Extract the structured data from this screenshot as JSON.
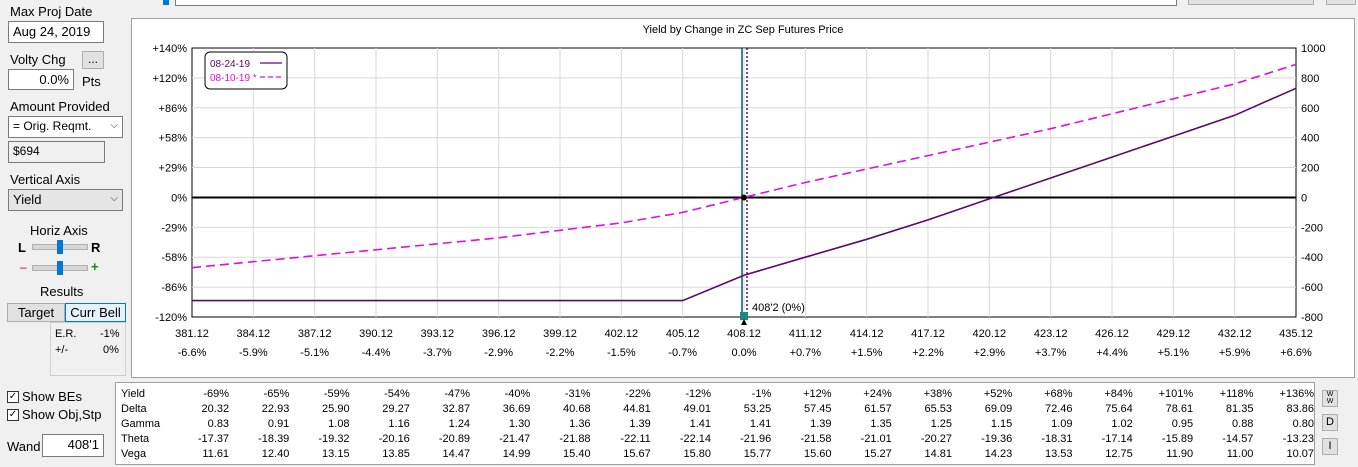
{
  "controls": {
    "max_proj_date_label": "Max Proj Date",
    "max_proj_date_value": "Aug 24, 2019",
    "volty_chg_label": "Volty Chg",
    "volty_chg_value": "0.0%",
    "volty_units": "Pts",
    "ellipsis": "...",
    "amount_provided_label": "Amount Provided",
    "amount_provided_value": "= Orig. Reqmt.",
    "amount_value": "$694",
    "vertical_axis_label": "Vertical Axis",
    "vertical_axis_value": "Yield",
    "horiz_axis_label": "Horiz Axis",
    "horiz_l": "L",
    "horiz_r": "R",
    "zoom_minus": "–",
    "zoom_plus": "+",
    "results_label": "Results",
    "target_button": "Target",
    "curr_bell_button": "Curr Bell",
    "er_label": "E.R.",
    "er_value": "-1%",
    "pm_label": "+/-",
    "pm_value": "0%",
    "show_bes_label": "Show BEs",
    "show_obj_label": "Show Obj,Stp",
    "wand_label": "Wand",
    "wand_value": "408'1"
  },
  "chart_data": {
    "type": "line",
    "title": "Yield by Change in ZC Sep Futures Price",
    "legend_position": "top-left",
    "x_ticks": [
      "381.12",
      "384.12",
      "387.12",
      "390.12",
      "393.12",
      "396.12",
      "399.12",
      "402.12",
      "405.12",
      "408.12",
      "411.12",
      "414.12",
      "417.12",
      "420.12",
      "423.12",
      "426.12",
      "429.12",
      "432.12",
      "435.12"
    ],
    "x_pct_ticks": [
      "-6.6%",
      "-5.9%",
      "-5.1%",
      "-4.4%",
      "-3.7%",
      "-2.9%",
      "-2.2%",
      "-1.5%",
      "-0.7%",
      "0.0%",
      "+0.7%",
      "+1.5%",
      "+2.2%",
      "+2.9%",
      "+3.7%",
      "+4.4%",
      "+5.1%",
      "+5.9%",
      "+6.6%"
    ],
    "y_left_ticks": [
      "+140%",
      "+120%",
      "+86%",
      "+58%",
      "+29%",
      "0%",
      "-29%",
      "-58%",
      "-86%",
      "-120%"
    ],
    "y_right_ticks": [
      "1000",
      "800",
      "600",
      "400",
      "200",
      "0",
      "-200",
      "-400",
      "-600",
      "-800"
    ],
    "y_right_range": [
      -800,
      1000
    ],
    "x_range": [
      381.12,
      435.12
    ],
    "marker_label": "408'2 (0%)",
    "marker_x": 408.12,
    "series": [
      {
        "name": "08-24-19",
        "color": "#5a0a6e",
        "dash": false,
        "points": [
          [
            381.12,
            -690
          ],
          [
            405.12,
            -690
          ],
          [
            408.12,
            -520
          ],
          [
            411.12,
            -400
          ],
          [
            414.12,
            -280
          ],
          [
            417.12,
            -150
          ],
          [
            420.12,
            -10
          ],
          [
            423.12,
            130
          ],
          [
            426.12,
            270
          ],
          [
            429.12,
            410
          ],
          [
            432.12,
            550
          ],
          [
            435.12,
            730
          ]
        ]
      },
      {
        "name": "08-10-19 *",
        "color": "#e010e0",
        "dash": true,
        "points": [
          [
            381.12,
            -470
          ],
          [
            384.12,
            -430
          ],
          [
            387.12,
            -390
          ],
          [
            390.12,
            -350
          ],
          [
            393.12,
            -310
          ],
          [
            396.12,
            -270
          ],
          [
            399.12,
            -220
          ],
          [
            402.12,
            -170
          ],
          [
            405.12,
            -100
          ],
          [
            408.12,
            0
          ],
          [
            411.12,
            100
          ],
          [
            414.12,
            190
          ],
          [
            417.12,
            280
          ],
          [
            420.12,
            370
          ],
          [
            423.12,
            460
          ],
          [
            426.12,
            560
          ],
          [
            429.12,
            660
          ],
          [
            432.12,
            760
          ],
          [
            435.12,
            890
          ]
        ]
      }
    ]
  },
  "greeks": {
    "rows": [
      {
        "label": "Yield",
        "values": [
          "-69%",
          "-65%",
          "-59%",
          "-54%",
          "-47%",
          "-40%",
          "-31%",
          "-22%",
          "-12%",
          "-1%",
          "+12%",
          "+24%",
          "+38%",
          "+52%",
          "+68%",
          "+84%",
          "+101%",
          "+118%",
          "+136%"
        ]
      },
      {
        "label": "Delta",
        "values": [
          "20.32",
          "22.93",
          "25.90",
          "29.27",
          "32.87",
          "36.69",
          "40.68",
          "44.81",
          "49.01",
          "53.25",
          "57.45",
          "61.57",
          "65.53",
          "69.09",
          "72.46",
          "75.64",
          "78.61",
          "81.35",
          "83.86"
        ]
      },
      {
        "label": "Gamma",
        "values": [
          "0.83",
          "0.91",
          "1.08",
          "1.16",
          "1.24",
          "1.30",
          "1.36",
          "1.39",
          "1.41",
          "1.41",
          "1.39",
          "1.35",
          "1.25",
          "1.15",
          "1.09",
          "1.02",
          "0.95",
          "0.88",
          "0.80"
        ]
      },
      {
        "label": "Theta",
        "values": [
          "-17.37",
          "-18.39",
          "-19.32",
          "-20.16",
          "-20.89",
          "-21.47",
          "-21.88",
          "-22.11",
          "-22.14",
          "-21.96",
          "-21.58",
          "-21.01",
          "-20.27",
          "-19.36",
          "-18.31",
          "-17.14",
          "-15.89",
          "-14.57",
          "-13.23"
        ]
      },
      {
        "label": "Vega",
        "values": [
          "11.61",
          "12.40",
          "13.15",
          "13.85",
          "14.47",
          "14.99",
          "15.40",
          "15.67",
          "15.80",
          "15.77",
          "15.60",
          "15.27",
          "14.81",
          "14.23",
          "13.53",
          "12.75",
          "11.90",
          "11.00",
          "10.07"
        ]
      }
    ]
  },
  "side_buttons": {
    "ww": "W W",
    "d": "D",
    "i": "I"
  }
}
